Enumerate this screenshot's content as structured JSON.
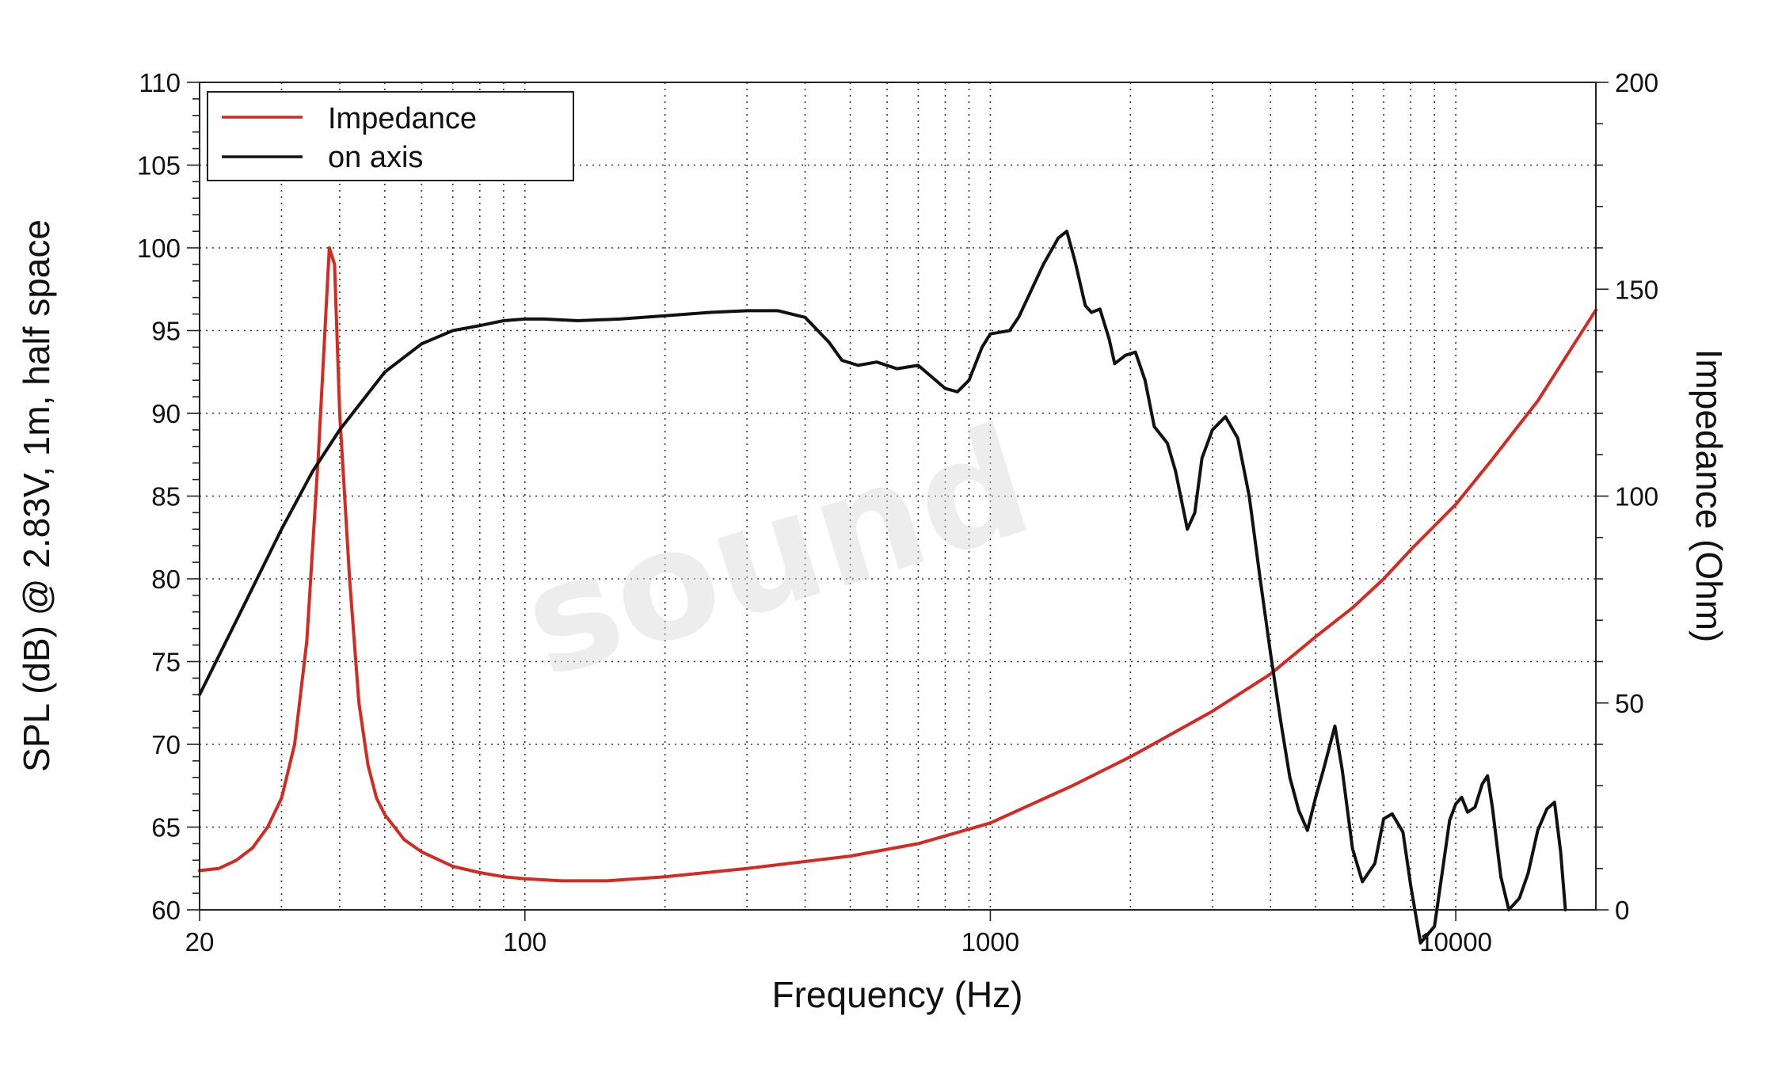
{
  "chart_data": {
    "type": "line",
    "xlabel": "Frequency (Hz)",
    "ylabel_left": "SPL (dB) @ 2.83V, 1m, half space",
    "ylabel_right": "Impedance (Ohm)",
    "x_scale": "log",
    "xlim": [
      20,
      20000
    ],
    "ylim_left": [
      60,
      110
    ],
    "ylim_right": [
      0,
      200
    ],
    "x_ticks": [
      "20",
      "100",
      "1000",
      "10000"
    ],
    "y_ticks_left": [
      "60",
      "65",
      "70",
      "75",
      "80",
      "85",
      "90",
      "95",
      "100",
      "105",
      "110"
    ],
    "y_ticks_right": [
      "0",
      "50",
      "100",
      "150",
      "200"
    ],
    "grid": true,
    "legend_position": "top-left",
    "watermark": "sound",
    "series": [
      {
        "name": "Impedance",
        "axis": "right",
        "color": "#d42a22",
        "points": [
          [
            20,
            9.5
          ],
          [
            22,
            10
          ],
          [
            24,
            12
          ],
          [
            26,
            15
          ],
          [
            28,
            20
          ],
          [
            30,
            27
          ],
          [
            32,
            40
          ],
          [
            34,
            65
          ],
          [
            36,
            110
          ],
          [
            38,
            160
          ],
          [
            39,
            156
          ],
          [
            40,
            120
          ],
          [
            42,
            80
          ],
          [
            44,
            50
          ],
          [
            46,
            35
          ],
          [
            48,
            27
          ],
          [
            50,
            23
          ],
          [
            55,
            17
          ],
          [
            60,
            14
          ],
          [
            70,
            10.5
          ],
          [
            80,
            9
          ],
          [
            90,
            8
          ],
          [
            100,
            7.5
          ],
          [
            120,
            7
          ],
          [
            150,
            7
          ],
          [
            200,
            8
          ],
          [
            300,
            10
          ],
          [
            500,
            13
          ],
          [
            700,
            16
          ],
          [
            1000,
            21
          ],
          [
            1500,
            30
          ],
          [
            2000,
            37
          ],
          [
            3000,
            48
          ],
          [
            4000,
            57
          ],
          [
            5000,
            66
          ],
          [
            6000,
            73
          ],
          [
            7000,
            80
          ],
          [
            8000,
            87
          ],
          [
            10000,
            98
          ],
          [
            12000,
            109
          ],
          [
            15000,
            123
          ],
          [
            20000,
            145
          ]
        ]
      },
      {
        "name": "on axis",
        "axis": "left",
        "color": "#111111",
        "points": [
          [
            20,
            73
          ],
          [
            25,
            78.5
          ],
          [
            30,
            83
          ],
          [
            35,
            86.5
          ],
          [
            40,
            89
          ],
          [
            50,
            92.5
          ],
          [
            60,
            94.2
          ],
          [
            70,
            95
          ],
          [
            80,
            95.3
          ],
          [
            90,
            95.6
          ],
          [
            100,
            95.7
          ],
          [
            110,
            95.7
          ],
          [
            130,
            95.6
          ],
          [
            160,
            95.7
          ],
          [
            200,
            95.9
          ],
          [
            250,
            96.1
          ],
          [
            300,
            96.2
          ],
          [
            350,
            96.2
          ],
          [
            400,
            95.8
          ],
          [
            450,
            94.3
          ],
          [
            480,
            93.2
          ],
          [
            520,
            92.9
          ],
          [
            570,
            93.1
          ],
          [
            630,
            92.7
          ],
          [
            700,
            92.9
          ],
          [
            800,
            91.5
          ],
          [
            850,
            91.3
          ],
          [
            900,
            92
          ],
          [
            960,
            94
          ],
          [
            1000,
            94.8
          ],
          [
            1100,
            95
          ],
          [
            1150,
            95.8
          ],
          [
            1300,
            99
          ],
          [
            1400,
            100.6
          ],
          [
            1460,
            101
          ],
          [
            1520,
            99.2
          ],
          [
            1600,
            96.5
          ],
          [
            1650,
            96.1
          ],
          [
            1720,
            96.3
          ],
          [
            1800,
            94.5
          ],
          [
            1850,
            93
          ],
          [
            1950,
            93.5
          ],
          [
            2050,
            93.7
          ],
          [
            2150,
            92
          ],
          [
            2250,
            89.2
          ],
          [
            2400,
            88.2
          ],
          [
            2500,
            86.5
          ],
          [
            2650,
            83
          ],
          [
            2750,
            84
          ],
          [
            2850,
            87.3
          ],
          [
            3000,
            89
          ],
          [
            3200,
            89.8
          ],
          [
            3400,
            88.5
          ],
          [
            3600,
            85
          ],
          [
            3800,
            80
          ],
          [
            4000,
            75.5
          ],
          [
            4200,
            71.5
          ],
          [
            4400,
            68
          ],
          [
            4600,
            66
          ],
          [
            4800,
            64.8
          ],
          [
            5000,
            66.8
          ],
          [
            5200,
            68.5
          ],
          [
            5500,
            71.1
          ],
          [
            5700,
            68.5
          ],
          [
            6000,
            63.7
          ],
          [
            6300,
            61.7
          ],
          [
            6700,
            62.8
          ],
          [
            7000,
            65.5
          ],
          [
            7300,
            65.8
          ],
          [
            7700,
            64.7
          ],
          [
            8000,
            61.5
          ],
          [
            8400,
            58
          ],
          [
            9000,
            59
          ],
          [
            9400,
            62.7
          ],
          [
            9700,
            65.4
          ],
          [
            10000,
            66.4
          ],
          [
            10300,
            66.8
          ],
          [
            10600,
            65.9
          ],
          [
            11000,
            66.2
          ],
          [
            11400,
            67.6
          ],
          [
            11700,
            68.1
          ],
          [
            12000,
            66.1
          ],
          [
            12500,
            62
          ],
          [
            13000,
            60
          ],
          [
            13700,
            60.7
          ],
          [
            14300,
            62.2
          ],
          [
            15000,
            64.8
          ],
          [
            15700,
            66.1
          ],
          [
            16300,
            66.5
          ],
          [
            16800,
            63.5
          ],
          [
            17200,
            60
          ]
        ]
      }
    ]
  }
}
